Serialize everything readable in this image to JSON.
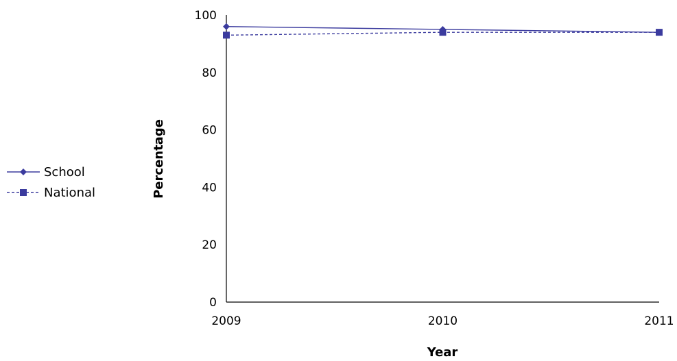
{
  "chart_data": {
    "type": "line",
    "title": "",
    "xlabel": "Year",
    "ylabel": "Percentage",
    "x": [
      "2009",
      "2010",
      "2011"
    ],
    "ylim": [
      0,
      100
    ],
    "yticks": [
      0,
      20,
      40,
      60,
      80,
      100
    ],
    "grid": false,
    "legend_position": "left",
    "series": [
      {
        "name": "School",
        "values": [
          96,
          95,
          94
        ],
        "marker": "diamond",
        "line_style": "solid",
        "color": "#3b3b9e"
      },
      {
        "name": "National",
        "values": [
          93,
          94,
          94
        ],
        "marker": "square",
        "line_style": "dashed",
        "color": "#3b3b9e"
      }
    ]
  }
}
